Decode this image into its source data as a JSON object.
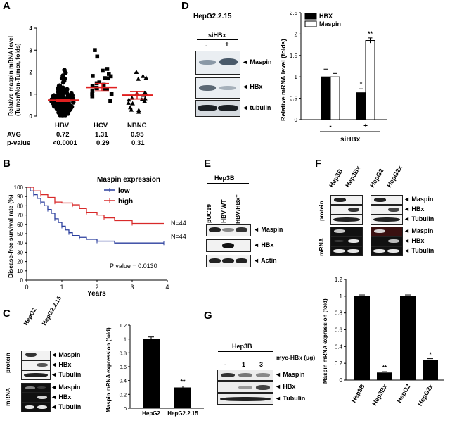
{
  "panels": {
    "A": "A",
    "B": "B",
    "C": "C",
    "D": "D",
    "E": "E",
    "F": "F",
    "G": "G"
  },
  "panel_a": {
    "ylabel": "Relative maspin mRNA level (Tumor/Non-Tumor, folds)",
    "groups": [
      "HBV",
      "HCV",
      "NBNC"
    ],
    "avg_label": "AVG",
    "avg": [
      "0.72",
      "1.31",
      "0.95"
    ],
    "pval_label": "p-value",
    "pvals": [
      "<0.0001",
      "0.29",
      "0.31"
    ]
  },
  "panel_b": {
    "legend_title": "Maspin expression",
    "series": [
      "low",
      "high"
    ],
    "n_low": "N=44",
    "n_high": "N=44",
    "pvalue": "P value = 0.0130",
    "xlabel": "Years",
    "ylabel": "Disease-free survival rate (%)"
  },
  "panel_c": {
    "lanes": [
      "HepG2",
      "HepG2.2.15"
    ],
    "protein": "protein",
    "mrna": "mRNA",
    "bands_protein": [
      "Maspin",
      "HBx",
      "Tubulin"
    ],
    "bands_mrna": [
      "Maspin",
      "HBx",
      "Tubulin"
    ],
    "sig": "**",
    "ylabel": "Maspin mRNA expression (fold)"
  },
  "panel_d": {
    "cell": "HepG2.2.15",
    "treat": "siHBx",
    "lane_minus": "-",
    "lane_plus": "+",
    "bands": [
      "Maspin",
      "HBx",
      "tubulin"
    ],
    "ylabel": "Relative mRNA level (folds)",
    "sig1": "*",
    "sig2": "**"
  },
  "panel_e": {
    "cell": "Hep3B",
    "lanes": [
      "pUC19",
      "HBV WT",
      "HBV/HBx⁻"
    ],
    "bands": [
      "Maspin",
      "HBx",
      "Actin"
    ]
  },
  "panel_f": {
    "lanes": [
      "Hep3B",
      "Hep3Bx",
      "HepG2",
      "HepG2x"
    ],
    "protein": "protein",
    "mrna": "mRNA",
    "bands_protein": [
      "Maspin",
      "HBx",
      "Tubulin"
    ],
    "bands_mrna": [
      "Maspin",
      "HBx",
      "Tubulin"
    ],
    "ylabel": "Maspin mRNA expression (fold)",
    "sigs": [
      "**",
      "*"
    ]
  },
  "panel_g": {
    "cell": "Hep3B",
    "treat": "myc-HBx (μg)",
    "doses": [
      "-",
      "1",
      "3"
    ],
    "bands": [
      "Maspin",
      "HBx",
      "Tubulin"
    ]
  },
  "chart_data": [
    {
      "id": "A",
      "type": "scatter",
      "ylabel": "Relative maspin mRNA level (Tumor/Non-Tumor, folds)",
      "categories": [
        "HBV",
        "HCV",
        "NBNC"
      ],
      "means": [
        0.72,
        1.31,
        0.95
      ],
      "ylim": [
        0,
        4
      ],
      "yticks": [
        0,
        1,
        2,
        3,
        4
      ]
    },
    {
      "id": "B",
      "type": "line",
      "title": "Maspin expression",
      "xlabel": "Years",
      "ylabel": "Disease-free survival rate (%)",
      "xlim": [
        0,
        4
      ],
      "ylim": [
        0,
        100
      ],
      "xticks": [
        0,
        1,
        2,
        3,
        4
      ],
      "yticks": [
        0,
        10,
        20,
        30,
        40,
        50,
        60,
        70,
        80,
        90,
        100
      ],
      "series": [
        {
          "name": "low",
          "color": "#2b3f9e",
          "points": [
            [
              0,
              100
            ],
            [
              0.1,
              96
            ],
            [
              0.2,
              92
            ],
            [
              0.3,
              88
            ],
            [
              0.4,
              84
            ],
            [
              0.5,
              80
            ],
            [
              0.6,
              76
            ],
            [
              0.7,
              72
            ],
            [
              0.8,
              66
            ],
            [
              0.9,
              62
            ],
            [
              1.0,
              58
            ],
            [
              1.1,
              54
            ],
            [
              1.2,
              51
            ],
            [
              1.3,
              48
            ],
            [
              1.5,
              46
            ],
            [
              1.7,
              44
            ],
            [
              2.0,
              42
            ],
            [
              2.5,
              40
            ],
            [
              3.9,
              40
            ]
          ]
        },
        {
          "name": "high",
          "color": "#d82a2a",
          "points": [
            [
              0,
              100
            ],
            [
              0.2,
              96
            ],
            [
              0.4,
              92
            ],
            [
              0.6,
              89
            ],
            [
              0.8,
              84
            ],
            [
              1.0,
              83
            ],
            [
              1.3,
              81
            ],
            [
              1.5,
              77
            ],
            [
              1.7,
              73
            ],
            [
              2.0,
              70
            ],
            [
              2.2,
              67
            ],
            [
              2.5,
              64
            ],
            [
              3.0,
              61
            ],
            [
              3.9,
              61
            ]
          ]
        }
      ]
    },
    {
      "id": "C",
      "type": "bar",
      "categories": [
        "HepG2",
        "HepG2.2.15"
      ],
      "values": [
        1.0,
        0.3
      ],
      "errors": [
        0.03,
        0.02
      ],
      "ylabel": "Maspin mRNA expression (fold)",
      "ylim": [
        0,
        1.2
      ],
      "yticks": [
        0,
        0.2,
        0.4,
        0.6,
        0.8,
        1.0,
        1.2
      ]
    },
    {
      "id": "D",
      "type": "bar",
      "xlabel": "siHBx",
      "categories": [
        "-",
        "+"
      ],
      "series": [
        {
          "name": "HBX",
          "values": [
            1.0,
            0.63
          ],
          "errors": [
            0.18,
            0.09
          ]
        },
        {
          "name": "Maspin",
          "values": [
            1.0,
            1.85
          ],
          "errors": [
            0.08,
            0.06
          ]
        }
      ],
      "ylabel": "Relative mRNA level (folds)",
      "ylim": [
        0,
        2.5
      ],
      "yticks": [
        0,
        0.5,
        1.0,
        1.5,
        2.0,
        2.5
      ]
    },
    {
      "id": "F",
      "type": "bar",
      "categories": [
        "Hep3B",
        "Hep3Bx",
        "HepG2",
        "HepG2x"
      ],
      "values": [
        1.0,
        0.09,
        1.0,
        0.24
      ],
      "errors": [
        0.015,
        0.01,
        0.015,
        0.015
      ],
      "ylabel": "Maspin mRNA expression (fold)",
      "ylim": [
        0,
        1.2
      ],
      "yticks": [
        0,
        0.2,
        0.4,
        0.6,
        0.8,
        1.0,
        1.2
      ]
    }
  ]
}
